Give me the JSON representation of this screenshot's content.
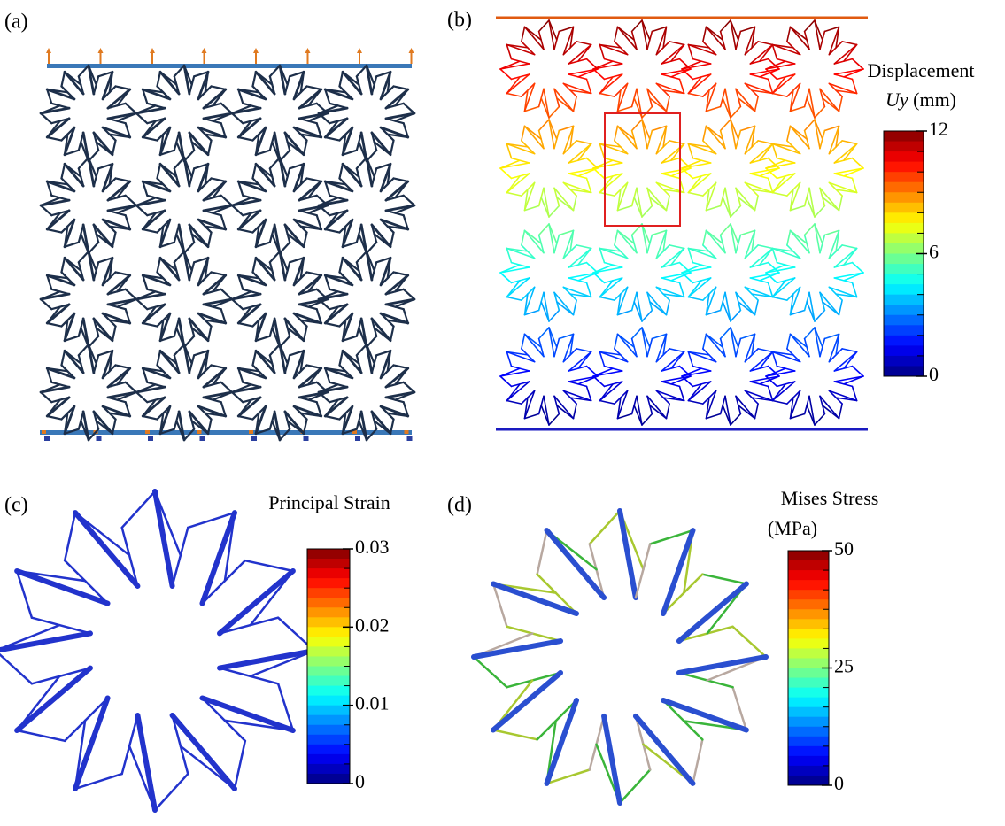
{
  "panels": [
    {
      "label": "(a)"
    },
    {
      "label": "(b)",
      "colorbar": {
        "title": "Displacement",
        "symbol": "Uy",
        "unit": "(mm)",
        "ticks": [
          12,
          6,
          0
        ]
      }
    },
    {
      "label": "(c)",
      "colorbar": {
        "title": "Principal Strain",
        "ticks": [
          0.03,
          0.02,
          0.01,
          0
        ]
      }
    },
    {
      "label": "(d)",
      "colorbar": {
        "title": "Mises Stress",
        "unit": "(MPa)",
        "ticks": [
          50,
          25,
          0
        ]
      }
    }
  ]
}
